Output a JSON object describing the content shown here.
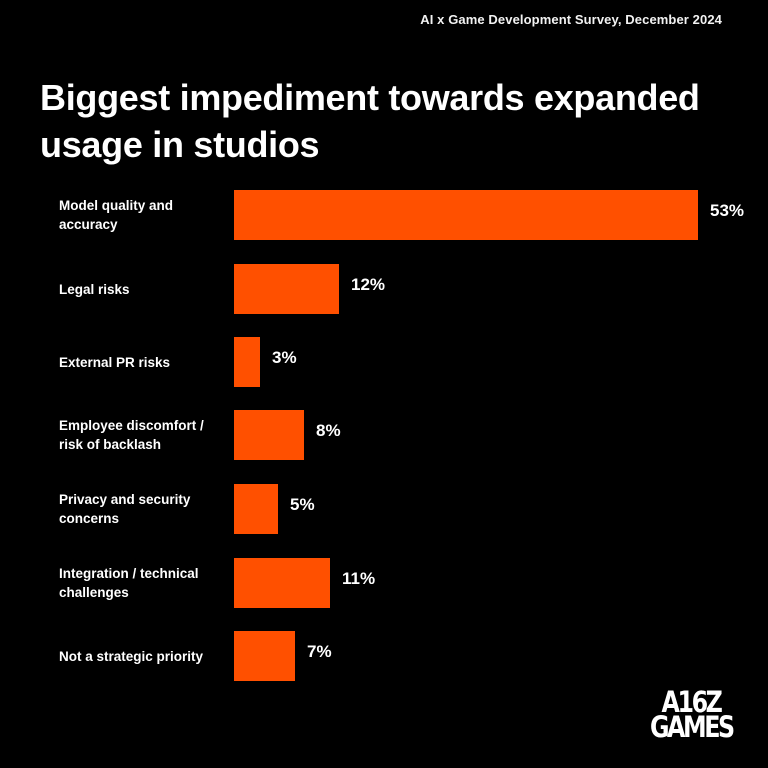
{
  "header": {
    "survey_label": "AI x Game Development Survey, December 2024",
    "title": "Biggest impediment towards expanded usage in studios"
  },
  "colors": {
    "background": "#000000",
    "bar": "#FF5000",
    "text": "#FFFFFF"
  },
  "chart_data": {
    "type": "bar",
    "orientation": "horizontal",
    "title": "Biggest impediment towards expanded usage in studios",
    "subtitle": "AI x Game Development Survey, December 2024",
    "xlabel": "",
    "ylabel": "",
    "categories": [
      "Model quality and accuracy",
      "Legal risks",
      "External PR risks",
      "Employee discomfort / risk of backlash",
      "Privacy and security concerns",
      "Integration / technical challenges",
      "Not a strategic priority"
    ],
    "values": [
      53,
      12,
      3,
      8,
      5,
      11,
      7
    ],
    "value_labels": [
      "53%",
      "12%",
      "3%",
      "8%",
      "5%",
      "11%",
      "7%"
    ],
    "unit": "%",
    "grid": false,
    "legend": null
  },
  "bars": [
    {
      "label": "Model quality and accuracy",
      "value": 53,
      "value_label": "53%"
    },
    {
      "label": "Legal risks",
      "value": 12,
      "value_label": "12%"
    },
    {
      "label": "External PR risks",
      "value": 3,
      "value_label": "3%"
    },
    {
      "label": "Employee discomfort / risk of backlash",
      "value": 8,
      "value_label": "8%"
    },
    {
      "label": "Privacy and security concerns",
      "value": 5,
      "value_label": "5%"
    },
    {
      "label": "Integration / technical challenges",
      "value": 11,
      "value_label": "11%"
    },
    {
      "label": "Not a strategic priority",
      "value": 7,
      "value_label": "7%"
    }
  ],
  "logo": {
    "line1": "A16Z",
    "line2": "GAMES"
  }
}
